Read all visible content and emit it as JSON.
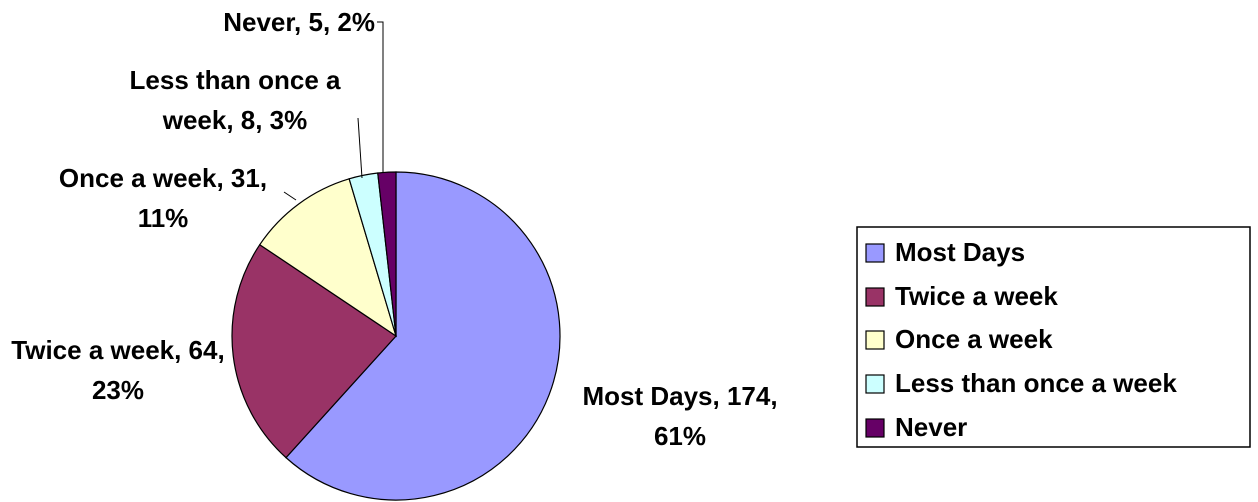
{
  "chart_data": {
    "type": "pie",
    "categories": [
      "Most Days",
      "Twice a week",
      "Once a week",
      "Less than once a week",
      "Never"
    ],
    "values": [
      174,
      64,
      31,
      8,
      5
    ],
    "value_labels": [
      "Most Days, 174, 61%",
      "Twice a week, 64, 23%",
      "Once a week, 31, 11%",
      "Less than once a week, 8, 3%",
      "Never, 5, 2%"
    ],
    "colors": [
      "#9999ff",
      "#993366",
      "#ffffcc",
      "#ccffff",
      "#660066"
    ],
    "legend": "right"
  }
}
